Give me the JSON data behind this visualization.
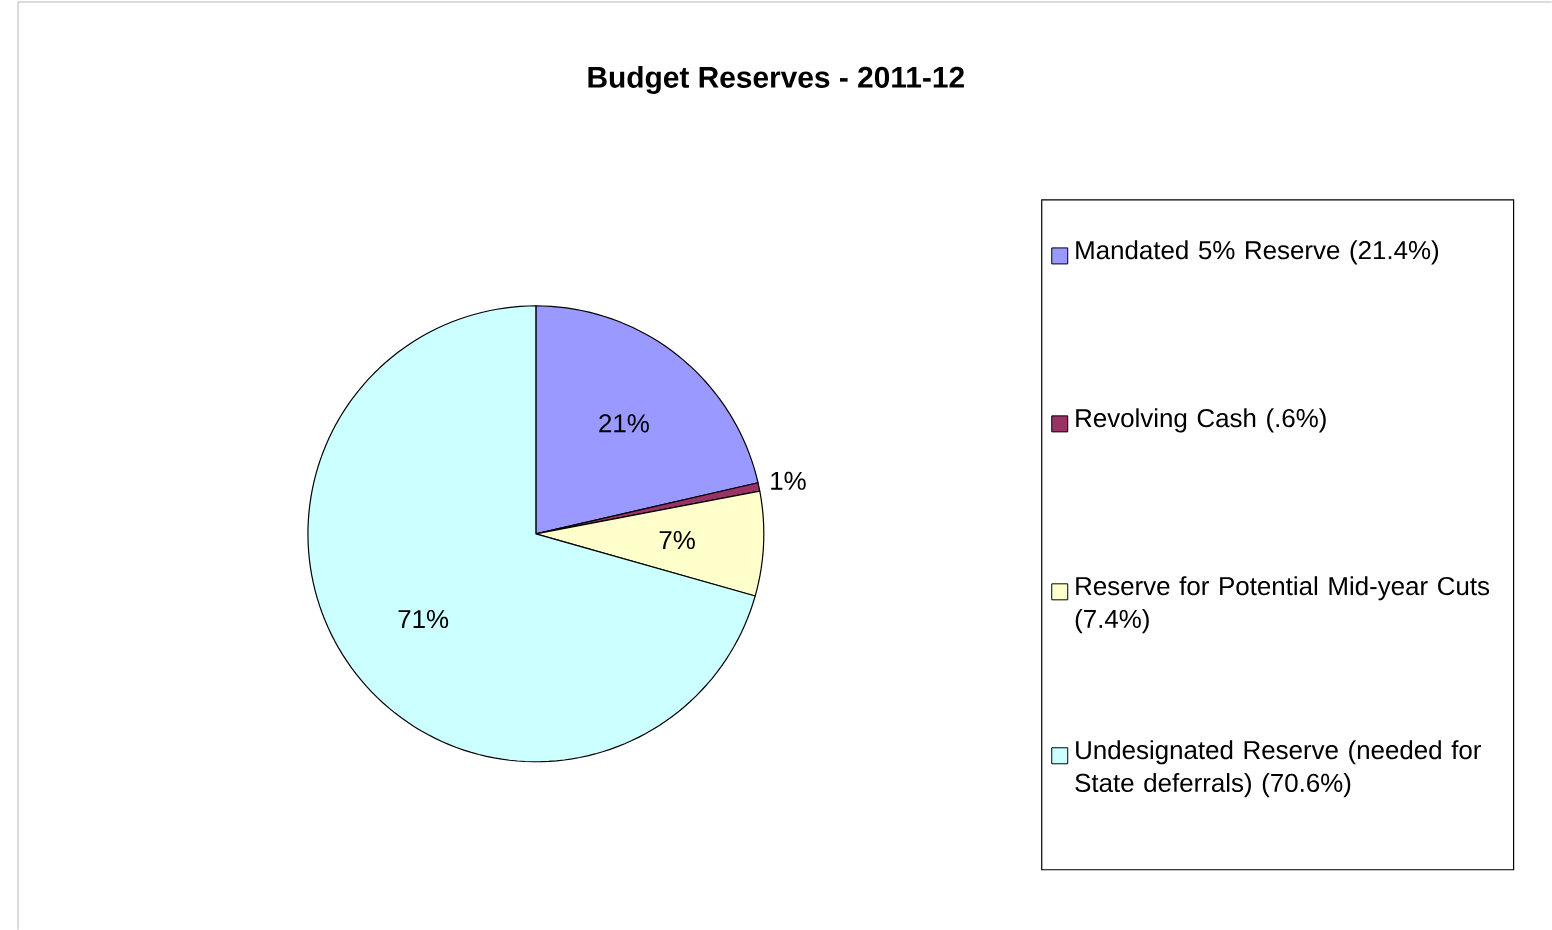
{
  "chart_data": {
    "type": "pie",
    "title": "Budget Reserves - 2011-12",
    "categories": [
      "Mandated 5% Reserve (21.4%)",
      "Revolving Cash (.6%)",
      "Reserve for Potential Mid-year Cuts (7.4%)",
      "Undesignated Reserve (needed for State deferrals) (70.6%)"
    ],
    "values": [
      21.4,
      0.6,
      7.4,
      70.6
    ],
    "value_labels": [
      "21%",
      "1%",
      "7%",
      "71%"
    ],
    "colors": [
      "#9999ff",
      "#993366",
      "#ffffcc",
      "#ccffff"
    ],
    "legend": "right"
  }
}
